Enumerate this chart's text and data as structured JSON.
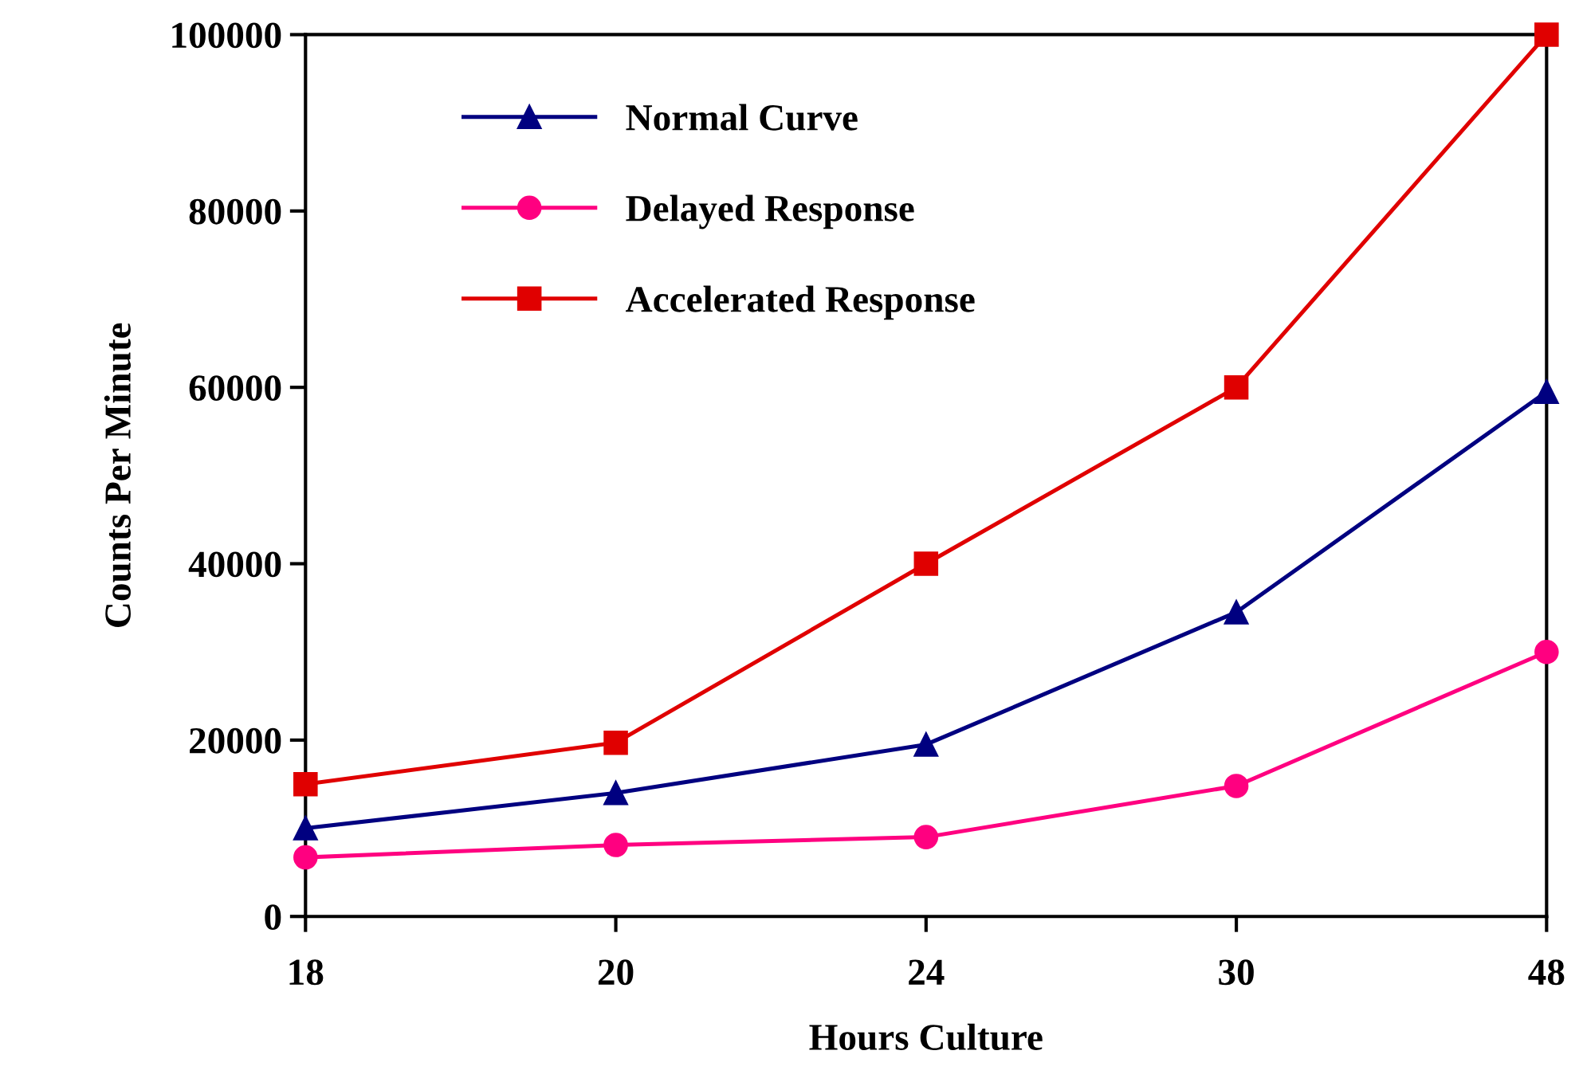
{
  "chart_data": {
    "type": "line",
    "xlabel": "Hours Culture",
    "ylabel": "Counts Per Minute",
    "categories": [
      "18",
      "20",
      "24",
      "30",
      "48"
    ],
    "series": [
      {
        "name": "Normal Curve",
        "color": "#000080",
        "marker": "triangle",
        "values": [
          10000,
          14000,
          19500,
          34500,
          59500
        ]
      },
      {
        "name": "Delayed Response",
        "color": "#ff0080",
        "marker": "circle",
        "values": [
          6700,
          8100,
          9000,
          14800,
          30000
        ]
      },
      {
        "name": "Accelerated Response",
        "color": "#e00000",
        "marker": "square",
        "values": [
          15000,
          19700,
          40000,
          60000,
          100000
        ]
      }
    ],
    "ylim": [
      0,
      100000
    ],
    "yticks": [
      0,
      20000,
      40000,
      60000,
      80000,
      100000
    ],
    "grid": false,
    "legend": "top left",
    "line_style": "solid"
  }
}
